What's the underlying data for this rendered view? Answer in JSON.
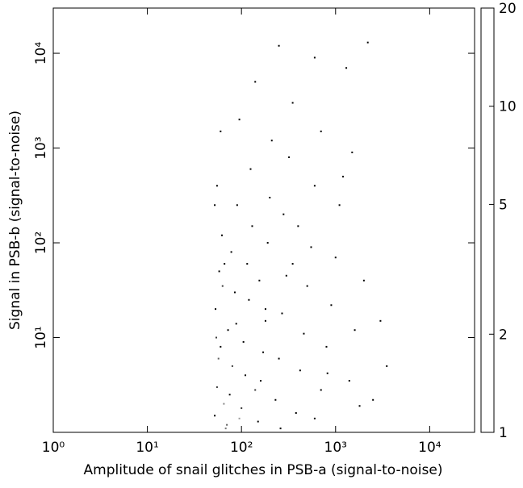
{
  "chart_data": {
    "type": "scatter",
    "x_label": "Amplitude of snail glitches in PSB-a (signal-to-noise)",
    "y_label": "Signal in PSB-b (signal-to-noise)",
    "xscale": "log",
    "yscale": "log",
    "xlim": [
      1,
      30000
    ],
    "ylim": [
      1,
      30000
    ],
    "xticks": [
      {
        "value": 1,
        "label": "10⁰"
      },
      {
        "value": 10,
        "label": "10¹"
      },
      {
        "value": 100,
        "label": "10²"
      },
      {
        "value": 1000,
        "label": "10³"
      },
      {
        "value": 10000,
        "label": "10⁴"
      }
    ],
    "yticks": [
      {
        "value": 10,
        "label": "10¹"
      },
      {
        "value": 100,
        "label": "10²"
      },
      {
        "value": 1000,
        "label": "10³"
      },
      {
        "value": 10000,
        "label": "10⁴"
      }
    ],
    "colorbar": {
      "scale": "log",
      "lim": [
        1,
        20
      ],
      "ticks": [
        1,
        2,
        5,
        10,
        20
      ],
      "colormap": "gray"
    },
    "series": [
      {
        "x": [
          52,
          55,
          60,
          53,
          58,
          62,
          55,
          60,
          70,
          75,
          80,
          72,
          85,
          78,
          90,
          95,
          100,
          110,
          105,
          120,
          115,
          130,
          125,
          140,
          150,
          160,
          170,
          180,
          155,
          190,
          200,
          210,
          230,
          250,
          270,
          300,
          280,
          320,
          350,
          380,
          420,
          460,
          500,
          550,
          600,
          700,
          800,
          900,
          1000,
          1200,
          1400,
          1600,
          2000,
          2500,
          3000,
          3500,
          2200,
          600,
          1300,
          250,
          65,
          68,
          57,
          88,
          63,
          140,
          52,
          400,
          700,
          1100,
          180,
          95,
          54,
          66,
          1500,
          350,
          260,
          600,
          820,
          1800
        ],
        "values": [
          1.5,
          3,
          8,
          20,
          50,
          120,
          400,
          1500,
          1.2,
          2.5,
          5,
          12,
          30,
          80,
          250,
          2000,
          1.8,
          4,
          9,
          25,
          60,
          150,
          600,
          5000,
          1.3,
          3.5,
          7,
          15,
          40,
          100,
          300,
          1200,
          2.2,
          6,
          18,
          45,
          200,
          800,
          3000,
          1.6,
          4.5,
          11,
          35,
          90,
          400,
          2.8,
          8,
          22,
          70,
          500,
          3.5,
          12,
          40,
          2.2,
          15,
          5,
          13000,
          9000,
          7000,
          12000,
          2.0,
          1.1,
          6,
          14,
          35,
          2.8,
          250,
          150,
          1500,
          250,
          20,
          1.4,
          10,
          60,
          900,
          60,
          1.1,
          1.4,
          4.2,
          1.9
        ],
        "counts": [
          1,
          2,
          1,
          1,
          1,
          1,
          1,
          1,
          3,
          1,
          2,
          1,
          1,
          1,
          1,
          1,
          2,
          1,
          1,
          1,
          1,
          1,
          1,
          1,
          1,
          1,
          1,
          1,
          1,
          1,
          1,
          1,
          1,
          1,
          1,
          1,
          1,
          1,
          1,
          1,
          1,
          1,
          1,
          1,
          1,
          1,
          1,
          1,
          1,
          1,
          1,
          1,
          1,
          1,
          1,
          1,
          1,
          1,
          1,
          1,
          5,
          4,
          3,
          1,
          2,
          2,
          1,
          1,
          1,
          1,
          1,
          6,
          2,
          1,
          1,
          1,
          1,
          1,
          1,
          1
        ]
      }
    ]
  }
}
